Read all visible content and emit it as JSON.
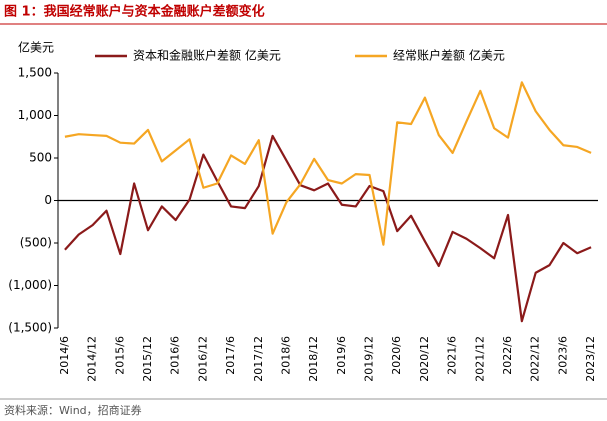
{
  "chart_data": {
    "type": "line",
    "title": "图 1：我国经常账户与资本金融账户差额变化",
    "y_label": "亿美元",
    "source": "资料来源：Wind，招商证券",
    "categories": [
      "2014/6",
      null,
      "2014/12",
      null,
      "2015/6",
      null,
      "2015/12",
      null,
      "2016/6",
      null,
      "2016/12",
      null,
      "2017/6",
      null,
      "2017/12",
      null,
      "2018/6",
      null,
      "2018/12",
      null,
      "2019/6",
      null,
      "2019/12",
      null,
      "2020/6",
      null,
      "2020/12",
      null,
      "2021/6",
      null,
      "2021/12",
      null,
      "2022/6",
      null,
      "2022/12",
      null,
      "2023/6",
      null,
      "2023/12"
    ],
    "series": [
      {
        "name": "资本和金融账户差额 亿美元",
        "color": "#8b1a1a",
        "values": [
          -580,
          -400,
          -290,
          -120,
          -630,
          200,
          -350,
          -70,
          -230,
          10,
          540,
          230,
          -70,
          -90,
          170,
          760,
          470,
          180,
          120,
          200,
          -50,
          -70,
          170,
          110,
          -360,
          -180,
          -480,
          -770,
          -370,
          -450,
          -560,
          -680,
          -170,
          -1420,
          -850,
          -760,
          -500,
          -620,
          -550
        ]
      },
      {
        "name": "经常账户差额 亿美元",
        "color": "#f5a623",
        "values": [
          750,
          780,
          770,
          760,
          680,
          670,
          830,
          460,
          590,
          720,
          150,
          200,
          530,
          430,
          710,
          -390,
          -20,
          190,
          490,
          240,
          200,
          310,
          300,
          -520,
          920,
          900,
          1210,
          770,
          560,
          930,
          1290,
          850,
          740,
          1390,
          1050,
          830,
          650,
          630,
          560
        ]
      }
    ],
    "ylim": [
      -1500,
      1500
    ],
    "yticks": [
      {
        "value": -1500,
        "label": "(1,500)"
      },
      {
        "value": -1000,
        "label": "(1,000)"
      },
      {
        "value": -500,
        "label": "(500)"
      },
      0,
      {
        "value": 500,
        "label": "500"
      },
      {
        "value": 1000,
        "label": "1,000"
      },
      {
        "value": 1500,
        "label": "1,500"
      }
    ],
    "grid": false
  }
}
